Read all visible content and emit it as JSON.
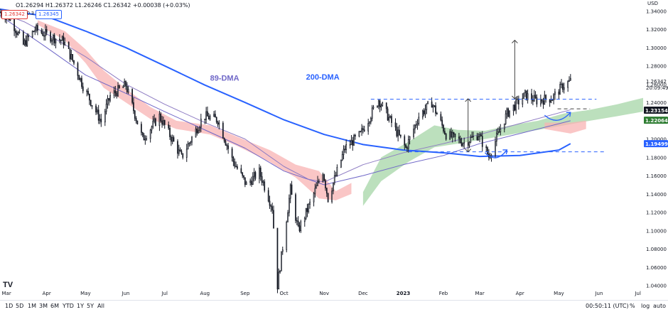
{
  "header": {
    "ohlc_text": "O1.26294  H1.26372  L1.26246  C1.26342  +0.00038 (+0.03%)",
    "bid_price": "1.26342",
    "spread": "0.3",
    "ask_price": "1.26345",
    "currency": "USD"
  },
  "toolbar": {
    "timeframes": [
      "1D",
      "5D",
      "1M",
      "3M",
      "6M",
      "YTD",
      "1Y",
      "5Y",
      "All"
    ],
    "time": "00:50:11 (UTC)",
    "percent": "%",
    "log": "log",
    "auto": "auto"
  },
  "logo": "TV",
  "colors": {
    "candle": "#131722",
    "ma200": "#2962ff",
    "ma89": "#8e7cc3",
    "ma_lower": "#7068c8",
    "cloud_bear": "#f8b3b3",
    "cloud_bull": "#a5d6a7",
    "dashed": "#2962ff",
    "badge_red": "#e53935",
    "badge_blue": "#2962ff"
  },
  "chart_data": {
    "type": "candlestick",
    "title": "",
    "xlabel": "",
    "ylabel": "",
    "ylim": [
      1.035,
      1.352
    ],
    "x_range": [
      "2022-02-24",
      "2023-07-05"
    ],
    "x_ticks": [
      {
        "label": "Mar",
        "date": "2022-03-01"
      },
      {
        "label": "Apr",
        "date": "2022-04-01"
      },
      {
        "label": "May",
        "date": "2022-05-01"
      },
      {
        "label": "Jun",
        "date": "2022-06-01"
      },
      {
        "label": "Jul",
        "date": "2022-07-01"
      },
      {
        "label": "Aug",
        "date": "2022-08-01"
      },
      {
        "label": "Sep",
        "date": "2022-09-01"
      },
      {
        "label": "Oct",
        "date": "2022-10-01"
      },
      {
        "label": "Nov",
        "date": "2022-11-01"
      },
      {
        "label": "Dec",
        "date": "2022-12-01"
      },
      {
        "label": "2023",
        "date": "2023-01-01",
        "bold": true
      },
      {
        "label": "Feb",
        "date": "2023-02-01"
      },
      {
        "label": "Mar",
        "date": "2023-03-01"
      },
      {
        "label": "Apr",
        "date": "2023-04-01"
      },
      {
        "label": "May",
        "date": "2023-05-01"
      },
      {
        "label": "Jun",
        "date": "2023-06-01"
      },
      {
        "label": "Jul",
        "date": "2023-07-01"
      }
    ],
    "y_ticks": [
      "1.34000",
      "1.32000",
      "1.30000",
      "1.28000",
      "1.26000",
      "1.24000",
      "1.22000",
      "1.20000",
      "1.18000",
      "1.16000",
      "1.14000",
      "1.12000",
      "1.10000",
      "1.08000",
      "1.06000",
      "1.04000"
    ],
    "price_path": [
      [
        "2022-02-24",
        1.339
      ],
      [
        "2022-03-04",
        1.332
      ],
      [
        "2022-03-14",
        1.303
      ],
      [
        "2022-03-23",
        1.32
      ],
      [
        "2022-04-04",
        1.312
      ],
      [
        "2022-04-14",
        1.307
      ],
      [
        "2022-04-22",
        1.283
      ],
      [
        "2022-04-29",
        1.258
      ],
      [
        "2022-05-13",
        1.219
      ],
      [
        "2022-05-20",
        1.247
      ],
      [
        "2022-06-01",
        1.259
      ],
      [
        "2022-06-14",
        1.2
      ],
      [
        "2022-06-27",
        1.225
      ],
      [
        "2022-07-07",
        1.199
      ],
      [
        "2022-07-14",
        1.18
      ],
      [
        "2022-07-29",
        1.22
      ],
      [
        "2022-08-01",
        1.225
      ],
      [
        "2022-08-11",
        1.221
      ],
      [
        "2022-08-22",
        1.178
      ],
      [
        "2022-09-02",
        1.15
      ],
      [
        "2022-09-12",
        1.164
      ],
      [
        "2022-09-22",
        1.125
      ],
      [
        "2022-09-26",
        1.04
      ],
      [
        "2022-10-06",
        1.145
      ],
      [
        "2022-10-12",
        1.1
      ],
      [
        "2022-10-21",
        1.129
      ],
      [
        "2022-10-31",
        1.165
      ],
      [
        "2022-11-04",
        1.135
      ],
      [
        "2022-11-17",
        1.19
      ],
      [
        "2022-11-29",
        1.205
      ],
      [
        "2022-12-13",
        1.243
      ],
      [
        "2023-01-03",
        1.19
      ],
      [
        "2023-01-13",
        1.225
      ],
      [
        "2023-01-23",
        1.24
      ],
      [
        "2023-02-03",
        1.205
      ],
      [
        "2023-02-17",
        1.196
      ],
      [
        "2023-02-28",
        1.205
      ],
      [
        "2023-03-08",
        1.181
      ],
      [
        "2023-03-22",
        1.228
      ],
      [
        "2023-04-05",
        1.248
      ],
      [
        "2023-04-14",
        1.242
      ],
      [
        "2023-04-26",
        1.245
      ],
      [
        "2023-05-04",
        1.258
      ],
      [
        "2023-05-10",
        1.2634
      ]
    ],
    "ma200": [
      [
        "2022-02-24",
        1.342
      ],
      [
        "2022-04-01",
        1.334
      ],
      [
        "2022-05-01",
        1.318
      ],
      [
        "2022-06-01",
        1.3
      ],
      [
        "2022-07-01",
        1.28
      ],
      [
        "2022-08-01",
        1.259
      ],
      [
        "2022-09-01",
        1.24
      ],
      [
        "2022-10-01",
        1.221
      ],
      [
        "2022-11-01",
        1.205
      ],
      [
        "2022-12-01",
        1.194
      ],
      [
        "2023-01-01",
        1.188
      ],
      [
        "2023-02-01",
        1.185
      ],
      [
        "2023-03-01",
        1.181
      ],
      [
        "2023-04-01",
        1.182
      ],
      [
        "2023-05-01",
        1.188
      ],
      [
        "2023-05-10",
        1.195
      ]
    ],
    "ma89": [
      [
        "2022-02-24",
        1.338
      ],
      [
        "2022-03-15",
        1.328
      ],
      [
        "2022-04-01",
        1.315
      ],
      [
        "2022-05-01",
        1.29
      ],
      [
        "2022-06-01",
        1.26
      ],
      [
        "2022-07-01",
        1.238
      ],
      [
        "2022-08-01",
        1.218
      ],
      [
        "2022-09-01",
        1.2
      ],
      [
        "2022-10-01",
        1.17
      ],
      [
        "2022-10-20",
        1.156
      ],
      [
        "2022-11-01",
        1.153
      ],
      [
        "2022-12-01",
        1.172
      ],
      [
        "2023-01-01",
        1.185
      ],
      [
        "2023-02-01",
        1.195
      ],
      [
        "2023-03-01",
        1.205
      ],
      [
        "2023-04-01",
        1.217
      ],
      [
        "2023-05-10",
        1.232
      ]
    ],
    "ma_lower": [
      [
        "2022-02-24",
        1.335
      ],
      [
        "2022-04-01",
        1.3
      ],
      [
        "2022-05-01",
        1.27
      ],
      [
        "2022-06-01",
        1.25
      ],
      [
        "2022-07-01",
        1.23
      ],
      [
        "2022-08-01",
        1.21
      ],
      [
        "2022-09-01",
        1.19
      ],
      [
        "2022-10-01",
        1.165
      ],
      [
        "2022-11-01",
        1.15
      ],
      [
        "2022-12-01",
        1.16
      ],
      [
        "2023-01-01",
        1.172
      ],
      [
        "2023-02-01",
        1.182
      ],
      [
        "2023-03-01",
        1.195
      ],
      [
        "2023-04-01",
        1.206
      ],
      [
        "2023-05-10",
        1.22
      ]
    ],
    "cloud_bear": [
      [
        "2022-03-25",
        1.325,
        1.33
      ],
      [
        "2022-04-15",
        1.308,
        1.318
      ],
      [
        "2022-05-01",
        1.283,
        1.298
      ],
      [
        "2022-05-15",
        1.256,
        1.275
      ],
      [
        "2022-06-01",
        1.24,
        1.255
      ],
      [
        "2022-06-20",
        1.222,
        1.235
      ],
      [
        "2022-07-10",
        1.211,
        1.22
      ],
      [
        "2022-08-05",
        1.205,
        1.215
      ],
      [
        "2022-08-25",
        1.193,
        1.203
      ],
      [
        "2022-09-20",
        1.175,
        1.188
      ],
      [
        "2022-10-10",
        1.158,
        1.172
      ],
      [
        "2022-10-28",
        1.135,
        1.165
      ],
      [
        "2022-11-10",
        1.133,
        1.143
      ],
      [
        "2022-11-22",
        1.14,
        1.152
      ]
    ],
    "cloud_bull": [
      [
        "2022-12-01",
        1.127,
        1.142
      ],
      [
        "2022-12-15",
        1.154,
        1.18
      ],
      [
        "2023-01-05",
        1.175,
        1.197
      ],
      [
        "2023-01-25",
        1.191,
        1.215
      ],
      [
        "2023-02-12",
        1.195,
        1.21
      ],
      [
        "2023-03-05",
        1.2,
        1.209
      ],
      [
        "2023-03-25",
        1.205,
        1.215
      ],
      [
        "2023-04-15",
        1.21,
        1.22
      ],
      [
        "2023-05-05",
        1.215,
        1.228
      ],
      [
        "2023-05-25",
        1.22,
        1.232
      ],
      [
        "2023-06-15",
        1.225,
        1.238
      ],
      [
        "2023-07-05",
        1.23,
        1.245
      ]
    ],
    "cloud_bear_late": [
      [
        "2023-04-20",
        1.211,
        1.218
      ],
      [
        "2023-05-10",
        1.206,
        1.218
      ],
      [
        "2023-05-22",
        1.211,
        1.22
      ]
    ],
    "labels": [
      {
        "text": "89-DMA",
        "date": "2022-08-05",
        "price": 1.264,
        "color": "#7068c8"
      },
      {
        "text": "200-DMA",
        "date": "2022-10-18",
        "price": 1.265,
        "color": "#2962ff"
      }
    ],
    "dashed_lines": [
      {
        "y": 1.2435,
        "from": "2022-12-07",
        "to": "2023-05-30"
      },
      {
        "y": 1.186,
        "from": "2023-01-05",
        "to": "2023-06-05"
      },
      {
        "y": 1.233,
        "from": "2023-04-30",
        "to": "2023-05-25",
        "short": true
      }
    ],
    "arrows": [
      {
        "date": "2023-02-20",
        "y1": 1.244,
        "y2": 1.186,
        "double": true
      },
      {
        "date": "2023-03-28",
        "y1": 1.244,
        "y2": 1.308,
        "double": true
      }
    ],
    "curves": [
      {
        "from": "2023-03-05",
        "to": "2023-03-22",
        "y": 1.185
      },
      {
        "from": "2023-04-20",
        "to": "2023-05-10",
        "y": 1.226
      }
    ],
    "price_badges": [
      {
        "value": "1.26342",
        "price": 1.26342,
        "style": "text"
      },
      {
        "value": "1.23154",
        "price": 1.23154,
        "color": "#131722"
      },
      {
        "value": "1.22064",
        "price": 1.22064,
        "color": "#2e7d32"
      },
      {
        "value": "1.19499",
        "price": 1.19499,
        "color": "#2962ff"
      }
    ],
    "countdown": "20:09:49"
  }
}
